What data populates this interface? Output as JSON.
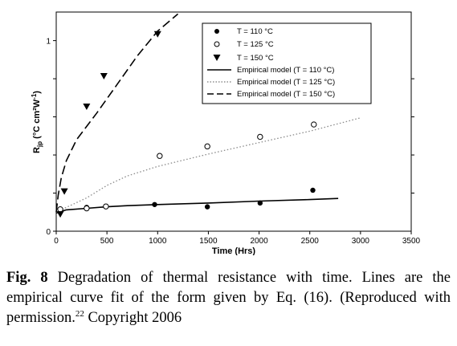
{
  "chart_data": {
    "type": "scatter",
    "xlabel": "Time (Hrs)",
    "ylabel_main": "R",
    "ylabel_sub": "jp",
    "ylabel_units": " (°C cm²W",
    "ylabel_exp": "-1",
    "ylabel_close": ")",
    "xlim": [
      0,
      3500
    ],
    "ylim": [
      0,
      1.15
    ],
    "x_ticks": [
      0,
      500,
      1000,
      1500,
      2000,
      2500,
      3000,
      3500
    ],
    "y_ticks_labeled": [
      0,
      1
    ],
    "y_minor_ticks": [
      0.2,
      0.4,
      0.6,
      0.8
    ],
    "grid": false,
    "legend_position": "top-right",
    "series": [
      {
        "name": "T = 110 °C",
        "marker": "filled-circle",
        "x": [
          40,
          300,
          490,
          970,
          1490,
          2010,
          2530
        ],
        "y": [
          0.115,
          0.125,
          0.13,
          0.14,
          0.128,
          0.148,
          0.215
        ]
      },
      {
        "name": "T = 125 °C",
        "marker": "open-circle",
        "x": [
          40,
          300,
          490,
          1020,
          1490,
          2010,
          2540
        ],
        "y": [
          0.115,
          0.12,
          0.13,
          0.395,
          0.445,
          0.495,
          0.56
        ]
      },
      {
        "name": "T = 150 °C",
        "marker": "filled-triangle",
        "x": [
          40,
          80,
          300,
          470,
          1000
        ],
        "y": [
          0.09,
          0.21,
          0.655,
          0.815,
          1.035
        ]
      }
    ],
    "models": [
      {
        "name": "Empirical model (T = 110  °C)",
        "style": "solid",
        "x": [
          0,
          100,
          300,
          500,
          700,
          1000,
          1500,
          2000,
          2500,
          2780
        ],
        "y": [
          0.095,
          0.112,
          0.12,
          0.128,
          0.134,
          0.14,
          0.148,
          0.158,
          0.166,
          0.172
        ]
      },
      {
        "name": "Empirical model (T = 125  °C)",
        "style": "dotted",
        "x": [
          0,
          100,
          300,
          500,
          700,
          1000,
          1500,
          2000,
          2500,
          3000
        ],
        "y": [
          0.1,
          0.125,
          0.175,
          0.24,
          0.29,
          0.34,
          0.405,
          0.465,
          0.525,
          0.595
        ]
      },
      {
        "name": "Empirical model (T = 150  °C)",
        "style": "dashed",
        "x": [
          0,
          20,
          50,
          100,
          200,
          400,
          600,
          800,
          1000,
          1200
        ],
        "y": [
          0.1,
          0.19,
          0.28,
          0.37,
          0.48,
          0.62,
          0.77,
          0.92,
          1.05,
          1.14
        ]
      }
    ]
  },
  "caption": {
    "label": "Fig. 8",
    "text": " Degradation of thermal resistance with time. Lines are the empirical curve fit of the form given by Eq. (16). (Reproduced with permission.",
    "ref": "22",
    "text2": " Copyright 2006"
  }
}
